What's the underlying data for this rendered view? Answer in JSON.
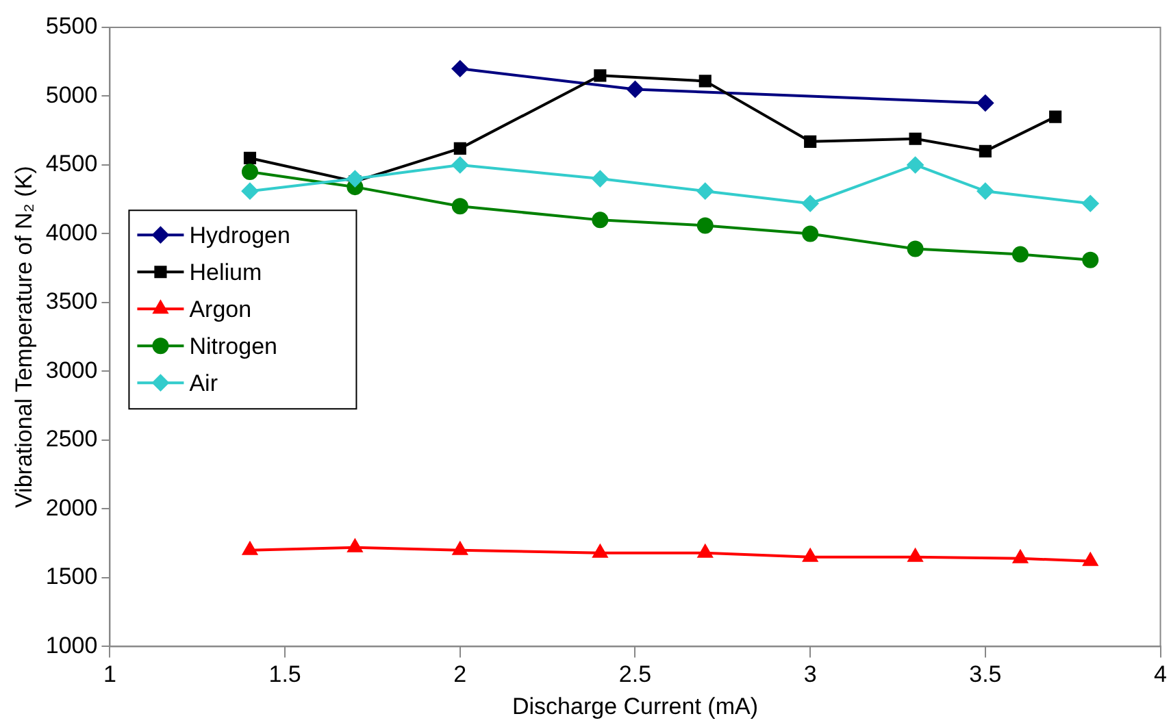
{
  "chart_data": {
    "type": "line",
    "xlabel": "Discharge Current (mA)",
    "ylabel": "Vibrational Temperature of N₂ (K)",
    "xlim": [
      1,
      4
    ],
    "xticks": [
      1,
      1.5,
      2,
      2.5,
      3,
      3.5,
      4
    ],
    "ylim": [
      1000,
      5500
    ],
    "yticks": [
      1000,
      1500,
      2000,
      2500,
      3000,
      3500,
      4000,
      4500,
      5000,
      5500
    ],
    "grid": false,
    "legend": "left",
    "series": [
      {
        "name": "Hydrogen",
        "color": "#000080",
        "marker": "diamond",
        "x": [
          2,
          2.5,
          3.5
        ],
        "values": [
          5200,
          5050,
          4950
        ]
      },
      {
        "name": "Helium",
        "color": "#000000",
        "marker": "square",
        "x": [
          1.4,
          1.7,
          2,
          2.4,
          2.7,
          3,
          3.3,
          3.5,
          3.7
        ],
        "values": [
          4550,
          4380,
          4620,
          5150,
          5110,
          4670,
          4690,
          4600,
          4850
        ]
      },
      {
        "name": "Argon",
        "color": "#ff0000",
        "marker": "triangle",
        "x": [
          1.4,
          1.7,
          2,
          2.4,
          2.7,
          3,
          3.3,
          3.6,
          3.8
        ],
        "values": [
          1700,
          1720,
          1700,
          1680,
          1680,
          1650,
          1650,
          1640,
          1620
        ]
      },
      {
        "name": "Nitrogen",
        "color": "#008000",
        "marker": "circle",
        "x": [
          1.4,
          1.7,
          2,
          2.4,
          2.7,
          3,
          3.3,
          3.6,
          3.8
        ],
        "values": [
          4450,
          4340,
          4200,
          4100,
          4060,
          4000,
          3890,
          3850,
          3810
        ]
      },
      {
        "name": "Air",
        "color": "#33cccc",
        "marker": "diamond",
        "x": [
          1.4,
          1.7,
          2,
          2.4,
          2.7,
          3,
          3.3,
          3.5,
          3.8
        ],
        "values": [
          4310,
          4400,
          4500,
          4400,
          4310,
          4220,
          4500,
          4310,
          4220
        ]
      }
    ]
  }
}
